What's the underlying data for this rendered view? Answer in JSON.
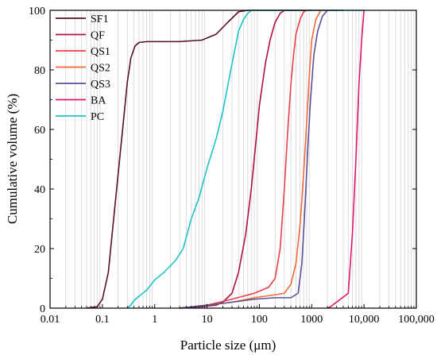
{
  "chart_data": {
    "type": "line",
    "xlabel": "Particle size (μm)",
    "ylabel": "Cumulative volume (%)",
    "x_scale": "log",
    "xlim": [
      0.01,
      100000
    ],
    "ylim": [
      0,
      100
    ],
    "x_ticks": [
      0.01,
      0.1,
      1,
      10,
      100,
      1000,
      10000,
      100000
    ],
    "x_tick_labels": [
      "0.01",
      "0.1",
      "1",
      "10",
      "100",
      "1000",
      "10,000",
      "100,000"
    ],
    "y_ticks": [
      0,
      20,
      40,
      60,
      80,
      100
    ],
    "y_tick_labels": [
      "0",
      "20",
      "40",
      "60",
      "80",
      "100"
    ],
    "grid": "vertical",
    "legend_position": "top-left",
    "series": [
      {
        "name": "SF1",
        "color": "#5a0f1f",
        "points": [
          [
            0.05,
            0
          ],
          [
            0.08,
            0.5
          ],
          [
            0.1,
            3
          ],
          [
            0.13,
            12
          ],
          [
            0.16,
            28
          ],
          [
            0.2,
            45
          ],
          [
            0.25,
            62
          ],
          [
            0.3,
            76
          ],
          [
            0.35,
            84
          ],
          [
            0.42,
            88
          ],
          [
            0.5,
            89.2
          ],
          [
            0.7,
            89.5
          ],
          [
            1,
            89.5
          ],
          [
            3,
            89.5
          ],
          [
            8,
            90
          ],
          [
            15,
            92
          ],
          [
            25,
            96
          ],
          [
            40,
            99.5
          ],
          [
            60,
            100
          ],
          [
            1000,
            100
          ]
        ]
      },
      {
        "name": "QF",
        "color": "#b01040",
        "points": [
          [
            3,
            0
          ],
          [
            8,
            0.5
          ],
          [
            15,
            1
          ],
          [
            20,
            2
          ],
          [
            30,
            5
          ],
          [
            40,
            12
          ],
          [
            55,
            25
          ],
          [
            70,
            40
          ],
          [
            85,
            55
          ],
          [
            100,
            68
          ],
          [
            130,
            82
          ],
          [
            160,
            90
          ],
          [
            200,
            96
          ],
          [
            250,
            99
          ],
          [
            300,
            100
          ],
          [
            1000,
            100
          ]
        ]
      },
      {
        "name": "QS1",
        "color": "#e8404a",
        "points": [
          [
            3,
            0
          ],
          [
            10,
            1
          ],
          [
            30,
            3
          ],
          [
            80,
            5
          ],
          [
            150,
            7
          ],
          [
            200,
            10
          ],
          [
            250,
            20
          ],
          [
            300,
            40
          ],
          [
            350,
            60
          ],
          [
            400,
            75
          ],
          [
            450,
            85
          ],
          [
            500,
            92
          ],
          [
            600,
            97
          ],
          [
            700,
            99.5
          ],
          [
            800,
            100
          ],
          [
            2000,
            100
          ]
        ]
      },
      {
        "name": "QS2",
        "color": "#f26a3a",
        "points": [
          [
            3,
            0
          ],
          [
            10,
            1
          ],
          [
            30,
            2
          ],
          [
            80,
            3.5
          ],
          [
            200,
            4.5
          ],
          [
            300,
            5
          ],
          [
            400,
            8
          ],
          [
            500,
            15
          ],
          [
            600,
            28
          ],
          [
            700,
            45
          ],
          [
            800,
            62
          ],
          [
            900,
            78
          ],
          [
            1000,
            90
          ],
          [
            1200,
            97
          ],
          [
            1500,
            100
          ],
          [
            3000,
            100
          ]
        ]
      },
      {
        "name": "QS3",
        "color": "#5a4f9a",
        "points": [
          [
            3,
            0
          ],
          [
            10,
            1
          ],
          [
            30,
            2
          ],
          [
            80,
            3
          ],
          [
            200,
            3.5
          ],
          [
            400,
            3.5
          ],
          [
            550,
            5
          ],
          [
            650,
            15
          ],
          [
            750,
            35
          ],
          [
            850,
            55
          ],
          [
            950,
            70
          ],
          [
            1100,
            85
          ],
          [
            1300,
            93
          ],
          [
            1600,
            98
          ],
          [
            2000,
            100
          ],
          [
            4000,
            100
          ]
        ]
      },
      {
        "name": "BA",
        "color": "#e0156e",
        "points": [
          [
            2000,
            0
          ],
          [
            2300,
            0.5
          ],
          [
            5000,
            5
          ],
          [
            6000,
            25
          ],
          [
            7000,
            50
          ],
          [
            8000,
            75
          ],
          [
            9000,
            90
          ],
          [
            10000,
            100
          ]
        ]
      },
      {
        "name": "PC",
        "color": "#1cc3c8",
        "points": [
          [
            0.3,
            0
          ],
          [
            0.35,
            1
          ],
          [
            0.4,
            2.5
          ],
          [
            0.5,
            4
          ],
          [
            0.7,
            6
          ],
          [
            1,
            9.5
          ],
          [
            1.5,
            12
          ],
          [
            2.5,
            16
          ],
          [
            3.5,
            20
          ],
          [
            5,
            30
          ],
          [
            7,
            37
          ],
          [
            10,
            47
          ],
          [
            15,
            57
          ],
          [
            20,
            66
          ],
          [
            30,
            82
          ],
          [
            40,
            93
          ],
          [
            50,
            97
          ],
          [
            60,
            99
          ],
          [
            70,
            100
          ],
          [
            10000,
            100
          ]
        ]
      }
    ]
  }
}
